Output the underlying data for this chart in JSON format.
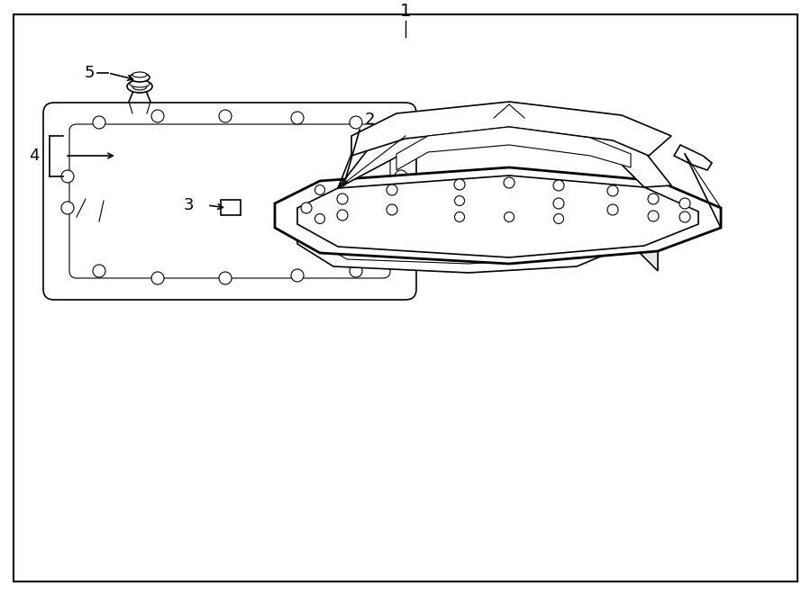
{
  "title": "1",
  "background_color": "#ffffff",
  "border_color": "#000000",
  "line_color": "#000000",
  "text_color": "#000000",
  "fig_width": 9.0,
  "fig_height": 6.61,
  "dpi": 100
}
